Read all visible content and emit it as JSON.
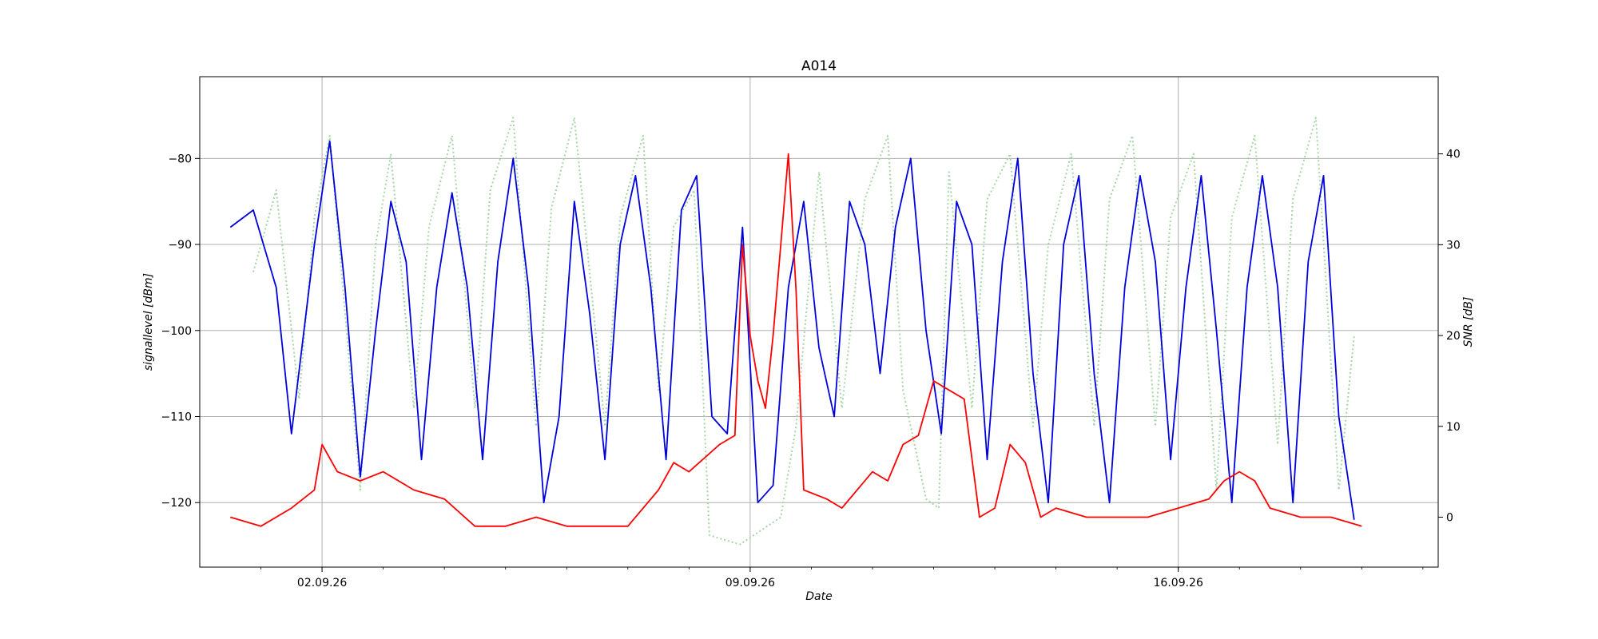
{
  "chart_data": {
    "type": "line",
    "title": "A014",
    "xlabel": "Date",
    "ylabel_left": "signallevel [dBm]",
    "ylabel_right": "SNR [dB]",
    "x_ticks": [
      "02.09.26",
      "09.09.26",
      "16.09.26"
    ],
    "x_range": [
      "2026-08-31T00:00",
      "2026-09-20T06:00"
    ],
    "ylim_left": [
      -127.5,
      -70.5
    ],
    "ylim_right": [
      -5.5,
      48.5
    ],
    "y_ticks_left": [
      -80,
      -90,
      -100,
      -110,
      -120
    ],
    "y_ticks_right": [
      40,
      30,
      20,
      10,
      0
    ],
    "grid": true,
    "legend": "none",
    "series": [
      {
        "axis": "right",
        "color": "#a6d6a6",
        "style": "dotted",
        "points": [
          [
            "2026-08-31T21:00",
            27
          ],
          [
            "2026-09-01T06:00",
            36
          ],
          [
            "2026-09-01T15:00",
            13
          ],
          [
            "2026-09-01T21:00",
            33
          ],
          [
            "2026-09-02T03:00",
            42
          ],
          [
            "2026-09-02T15:00",
            3
          ],
          [
            "2026-09-02T21:00",
            30
          ],
          [
            "2026-09-03T03:00",
            40
          ],
          [
            "2026-09-03T12:00",
            12
          ],
          [
            "2026-09-03T18:00",
            32
          ],
          [
            "2026-09-04T03:00",
            42
          ],
          [
            "2026-09-04T12:00",
            12
          ],
          [
            "2026-09-04T18:00",
            36
          ],
          [
            "2026-09-05T03:00",
            44
          ],
          [
            "2026-09-05T12:00",
            10
          ],
          [
            "2026-09-05T18:00",
            34
          ],
          [
            "2026-09-06T03:00",
            44
          ],
          [
            "2026-09-06T15:00",
            10
          ],
          [
            "2026-09-06T21:00",
            33
          ],
          [
            "2026-09-07T06:00",
            42
          ],
          [
            "2026-09-07T12:00",
            14
          ],
          [
            "2026-09-07T18:00",
            32
          ],
          [
            "2026-09-08T02:00",
            36
          ],
          [
            "2026-09-08T08:00",
            -2
          ],
          [
            "2026-09-08T20:00",
            -3
          ],
          [
            "2026-09-09T12:00",
            0
          ],
          [
            "2026-09-09T18:00",
            10
          ],
          [
            "2026-09-10T03:00",
            38
          ],
          [
            "2026-09-10T12:00",
            12
          ],
          [
            "2026-09-10T21:00",
            35
          ],
          [
            "2026-09-11T06:00",
            42
          ],
          [
            "2026-09-11T12:00",
            14
          ],
          [
            "2026-09-11T21:00",
            2
          ],
          [
            "2026-09-12T02:00",
            1
          ],
          [
            "2026-09-12T06:00",
            38
          ],
          [
            "2026-09-12T15:00",
            12
          ],
          [
            "2026-09-12T21:00",
            35
          ],
          [
            "2026-09-13T06:00",
            40
          ],
          [
            "2026-09-13T15:00",
            10
          ],
          [
            "2026-09-13T21:00",
            30
          ],
          [
            "2026-09-14T06:00",
            40
          ],
          [
            "2026-09-14T15:00",
            10
          ],
          [
            "2026-09-14T21:00",
            35
          ],
          [
            "2026-09-15T06:00",
            42
          ],
          [
            "2026-09-15T15:00",
            10
          ],
          [
            "2026-09-15T21:00",
            33
          ],
          [
            "2026-09-16T06:00",
            40
          ],
          [
            "2026-09-16T15:00",
            3
          ],
          [
            "2026-09-16T21:00",
            33
          ],
          [
            "2026-09-17T06:00",
            42
          ],
          [
            "2026-09-17T15:00",
            8
          ],
          [
            "2026-09-17T21:00",
            35
          ],
          [
            "2026-09-18T06:00",
            44
          ],
          [
            "2026-09-18T15:00",
            3
          ],
          [
            "2026-09-18T21:00",
            20
          ]
        ]
      },
      {
        "axis": "left",
        "color": "#0000dd",
        "style": "solid",
        "points": [
          [
            "2026-08-31T12:00",
            -88
          ],
          [
            "2026-08-31T21:00",
            -86
          ],
          [
            "2026-09-01T06:00",
            -95
          ],
          [
            "2026-09-01T12:00",
            -112
          ],
          [
            "2026-09-01T21:00",
            -90
          ],
          [
            "2026-09-02T03:00",
            -78
          ],
          [
            "2026-09-02T09:00",
            -95
          ],
          [
            "2026-09-02T15:00",
            -117
          ],
          [
            "2026-09-02T21:00",
            -100
          ],
          [
            "2026-09-03T03:00",
            -85
          ],
          [
            "2026-09-03T09:00",
            -92
          ],
          [
            "2026-09-03T15:00",
            -115
          ],
          [
            "2026-09-03T21:00",
            -95
          ],
          [
            "2026-09-04T03:00",
            -84
          ],
          [
            "2026-09-04T09:00",
            -95
          ],
          [
            "2026-09-04T15:00",
            -115
          ],
          [
            "2026-09-04T21:00",
            -92
          ],
          [
            "2026-09-05T03:00",
            -80
          ],
          [
            "2026-09-05T09:00",
            -95
          ],
          [
            "2026-09-05T15:00",
            -120
          ],
          [
            "2026-09-05T21:00",
            -110
          ],
          [
            "2026-09-06T03:00",
            -85
          ],
          [
            "2026-09-06T09:00",
            -98
          ],
          [
            "2026-09-06T15:00",
            -115
          ],
          [
            "2026-09-06T21:00",
            -90
          ],
          [
            "2026-09-07T03:00",
            -82
          ],
          [
            "2026-09-07T09:00",
            -95
          ],
          [
            "2026-09-07T15:00",
            -115
          ],
          [
            "2026-09-07T21:00",
            -86
          ],
          [
            "2026-09-08T03:00",
            -82
          ],
          [
            "2026-09-08T09:00",
            -110
          ],
          [
            "2026-09-08T15:00",
            -112
          ],
          [
            "2026-09-08T21:00",
            -88
          ],
          [
            "2026-09-09T03:00",
            -120
          ],
          [
            "2026-09-09T09:00",
            -118
          ],
          [
            "2026-09-09T15:00",
            -95
          ],
          [
            "2026-09-09T21:00",
            -85
          ],
          [
            "2026-09-10T03:00",
            -102
          ],
          [
            "2026-09-10T09:00",
            -110
          ],
          [
            "2026-09-10T15:00",
            -85
          ],
          [
            "2026-09-10T21:00",
            -90
          ],
          [
            "2026-09-11T03:00",
            -105
          ],
          [
            "2026-09-11T09:00",
            -88
          ],
          [
            "2026-09-11T15:00",
            -80
          ],
          [
            "2026-09-11T21:00",
            -100
          ],
          [
            "2026-09-12T03:00",
            -112
          ],
          [
            "2026-09-12T09:00",
            -85
          ],
          [
            "2026-09-12T15:00",
            -90
          ],
          [
            "2026-09-12T21:00",
            -115
          ],
          [
            "2026-09-13T03:00",
            -92
          ],
          [
            "2026-09-13T09:00",
            -80
          ],
          [
            "2026-09-13T15:00",
            -105
          ],
          [
            "2026-09-13T21:00",
            -120
          ],
          [
            "2026-09-14T03:00",
            -90
          ],
          [
            "2026-09-14T09:00",
            -82
          ],
          [
            "2026-09-14T15:00",
            -105
          ],
          [
            "2026-09-14T21:00",
            -120
          ],
          [
            "2026-09-15T03:00",
            -95
          ],
          [
            "2026-09-15T09:00",
            -82
          ],
          [
            "2026-09-15T15:00",
            -92
          ],
          [
            "2026-09-15T21:00",
            -115
          ],
          [
            "2026-09-16T03:00",
            -95
          ],
          [
            "2026-09-16T09:00",
            -82
          ],
          [
            "2026-09-16T15:00",
            -100
          ],
          [
            "2026-09-16T21:00",
            -120
          ],
          [
            "2026-09-17T03:00",
            -95
          ],
          [
            "2026-09-17T09:00",
            -82
          ],
          [
            "2026-09-17T15:00",
            -95
          ],
          [
            "2026-09-17T21:00",
            -120
          ],
          [
            "2026-09-18T03:00",
            -92
          ],
          [
            "2026-09-18T09:00",
            -82
          ],
          [
            "2026-09-18T15:00",
            -110
          ],
          [
            "2026-09-18T21:00",
            -122
          ]
        ]
      },
      {
        "axis": "right",
        "color": "#ff0000",
        "style": "solid",
        "points": [
          [
            "2026-08-31T12:00",
            0
          ],
          [
            "2026-09-01T00:00",
            -1
          ],
          [
            "2026-09-01T12:00",
            1
          ],
          [
            "2026-09-01T21:00",
            3
          ],
          [
            "2026-09-02T00:00",
            8
          ],
          [
            "2026-09-02T06:00",
            5
          ],
          [
            "2026-09-02T15:00",
            4
          ],
          [
            "2026-09-03T00:00",
            5
          ],
          [
            "2026-09-03T12:00",
            3
          ],
          [
            "2026-09-04T00:00",
            2
          ],
          [
            "2026-09-04T12:00",
            -1
          ],
          [
            "2026-09-05T00:00",
            -1
          ],
          [
            "2026-09-05T12:00",
            0
          ],
          [
            "2026-09-06T00:00",
            -1
          ],
          [
            "2026-09-06T12:00",
            -1
          ],
          [
            "2026-09-07T00:00",
            -1
          ],
          [
            "2026-09-07T12:00",
            3
          ],
          [
            "2026-09-07T18:00",
            6
          ],
          [
            "2026-09-08T00:00",
            5
          ],
          [
            "2026-09-08T12:00",
            8
          ],
          [
            "2026-09-08T18:00",
            9
          ],
          [
            "2026-09-08T21:00",
            30
          ],
          [
            "2026-09-09T00:00",
            20
          ],
          [
            "2026-09-09T03:00",
            15
          ],
          [
            "2026-09-09T06:00",
            12
          ],
          [
            "2026-09-09T09:00",
            20
          ],
          [
            "2026-09-09T12:00",
            30
          ],
          [
            "2026-09-09T15:00",
            40
          ],
          [
            "2026-09-09T18:00",
            25
          ],
          [
            "2026-09-09T21:00",
            3
          ],
          [
            "2026-09-10T06:00",
            2
          ],
          [
            "2026-09-10T12:00",
            1
          ],
          [
            "2026-09-11T00:00",
            5
          ],
          [
            "2026-09-11T06:00",
            4
          ],
          [
            "2026-09-11T12:00",
            8
          ],
          [
            "2026-09-11T18:00",
            9
          ],
          [
            "2026-09-12T00:00",
            15
          ],
          [
            "2026-09-12T06:00",
            14
          ],
          [
            "2026-09-12T12:00",
            13
          ],
          [
            "2026-09-12T18:00",
            0
          ],
          [
            "2026-09-13T00:00",
            1
          ],
          [
            "2026-09-13T06:00",
            8
          ],
          [
            "2026-09-13T12:00",
            6
          ],
          [
            "2026-09-13T18:00",
            0
          ],
          [
            "2026-09-14T00:00",
            1
          ],
          [
            "2026-09-14T12:00",
            0
          ],
          [
            "2026-09-15T00:00",
            0
          ],
          [
            "2026-09-15T12:00",
            0
          ],
          [
            "2026-09-16T00:00",
            1
          ],
          [
            "2026-09-16T12:00",
            2
          ],
          [
            "2026-09-16T18:00",
            4
          ],
          [
            "2026-09-17T00:00",
            5
          ],
          [
            "2026-09-17T06:00",
            4
          ],
          [
            "2026-09-17T12:00",
            1
          ],
          [
            "2026-09-18T00:00",
            0
          ],
          [
            "2026-09-18T12:00",
            0
          ],
          [
            "2026-09-19T00:00",
            -1
          ]
        ]
      }
    ]
  }
}
